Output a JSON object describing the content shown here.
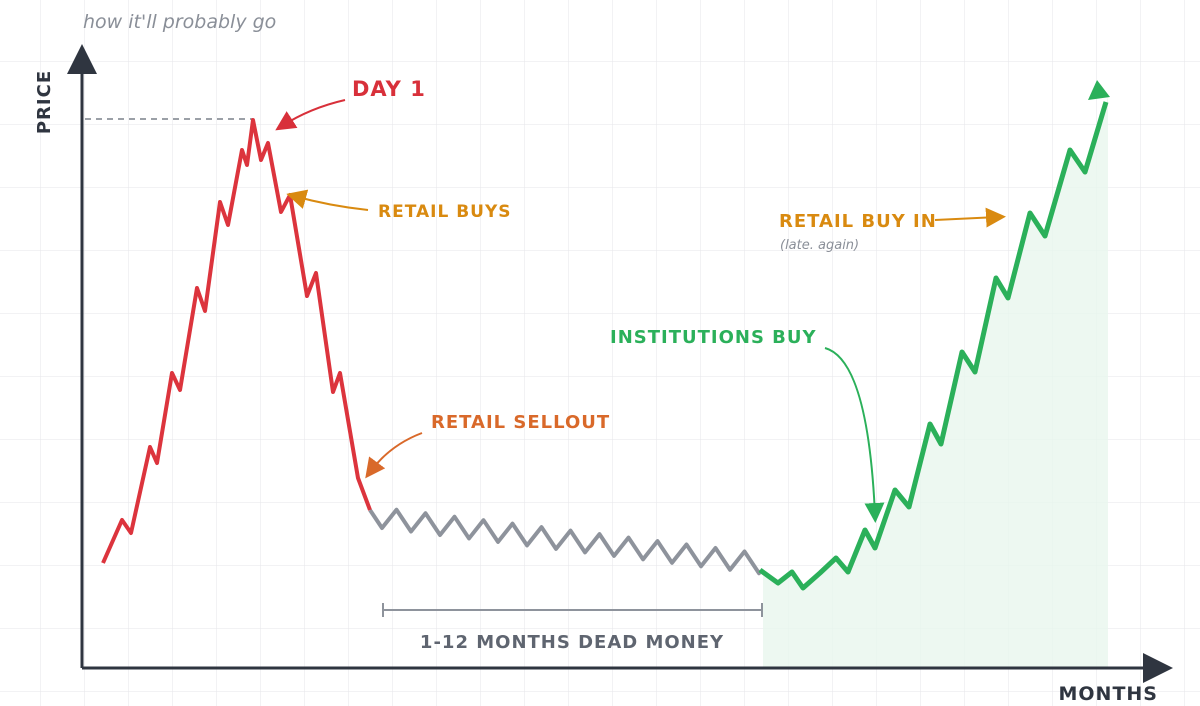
{
  "subtitle": "how it'll probably go",
  "axes": {
    "y_label": "PRICE",
    "x_label": "MONTHS"
  },
  "annotations": {
    "day1": "DAY 1",
    "retail_buys": "RETAIL BUYS",
    "retail_sellout": "RETAIL SELLOUT",
    "institutions_buy": "INSTITUTIONS BUY",
    "retail_buy_in": "RETAIL BUY IN",
    "retail_buy_in_note": "(late. again)",
    "dead_money": "1-12 MONTHS DEAD MONEY"
  }
}
